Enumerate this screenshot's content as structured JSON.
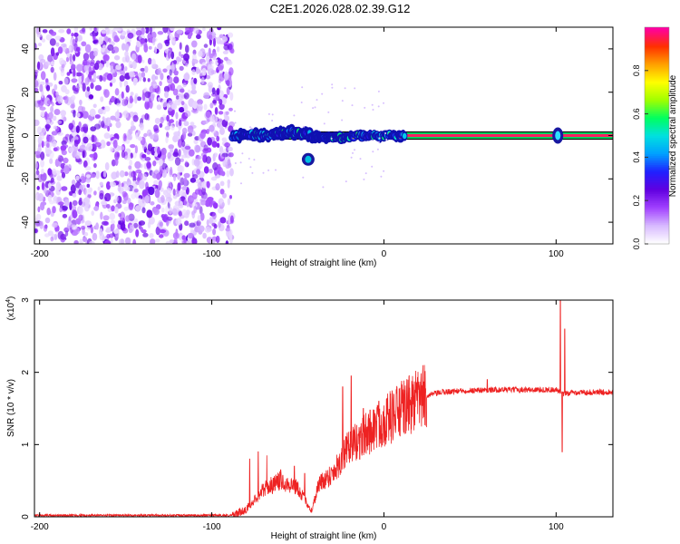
{
  "chart_data": [
    {
      "type": "heatmap",
      "title": "C2E1.2026.028.02.39.G12",
      "xlabel": "Height of straight line (km)",
      "ylabel": "Frequency (Hz)",
      "xlim": [
        -203,
        133
      ],
      "ylim": [
        -50,
        50
      ],
      "x_ticks": [
        -200,
        -100,
        0,
        100
      ],
      "y_ticks": [
        -40,
        -20,
        0,
        20,
        40
      ],
      "colorbar": {
        "label": "Normalized spectral amplitude",
        "range": [
          0,
          1
        ],
        "ticks": [
          0.0,
          0.2,
          0.4,
          0.6,
          0.8
        ],
        "colors": [
          "#ffffff",
          "#d7b8ff",
          "#a040ff",
          "#6000e0",
          "#2020ff",
          "#00a0ff",
          "#00e0e0",
          "#00ff60",
          "#a0ff00",
          "#ffff00",
          "#ffa000",
          "#ff3000",
          "#ff00a0"
        ]
      },
      "features": {
        "noise_region_x": [
          -203,
          -88
        ],
        "carrier_line_frequency": 0,
        "carrier_start_x": -88,
        "spur": {
          "x": -44,
          "y": -11
        },
        "bright_blob_x": 101
      },
      "ridge_points": [
        {
          "x": -85,
          "y": 0
        },
        {
          "x": -75,
          "y": 0.5
        },
        {
          "x": -65,
          "y": 0.3
        },
        {
          "x": -55,
          "y": 1.5
        },
        {
          "x": -45,
          "y": 1
        },
        {
          "x": -38,
          "y": -1.5
        },
        {
          "x": -30,
          "y": -1
        },
        {
          "x": -20,
          "y": -0.5
        },
        {
          "x": -10,
          "y": 0
        },
        {
          "x": 0,
          "y": 0
        },
        {
          "x": 10,
          "y": 0
        },
        {
          "x": 100,
          "y": 0
        }
      ]
    },
    {
      "type": "line",
      "xlabel": "Height of straight line (km)",
      "ylabel": "SNR (10 * v/v)",
      "scale_label": "(x10",
      "scale_exp": "4",
      "scale_close": ")",
      "xlim": [
        -203,
        133
      ],
      "ylim": [
        0,
        3
      ],
      "x_ticks": [
        -200,
        -100,
        0,
        100
      ],
      "y_ticks": [
        0,
        1,
        2,
        3
      ],
      "series": [
        {
          "name": "SNR",
          "color": "#ee2222",
          "envelope": [
            [
              -203,
              0.02
            ],
            [
              -88,
              0.02
            ],
            [
              -80,
              0.1
            ],
            [
              -70,
              0.38
            ],
            [
              -60,
              0.5
            ],
            [
              -50,
              0.4
            ],
            [
              -42,
              0.08
            ],
            [
              -38,
              0.45
            ],
            [
              -30,
              0.6
            ],
            [
              -22,
              0.9
            ],
            [
              -15,
              1.05
            ],
            [
              -5,
              1.25
            ],
            [
              5,
              1.4
            ],
            [
              15,
              1.55
            ],
            [
              25,
              1.68
            ],
            [
              35,
              1.73
            ],
            [
              50,
              1.75
            ],
            [
              70,
              1.76
            ],
            [
              90,
              1.76
            ],
            [
              100,
              1.76
            ],
            [
              104,
              1.7
            ],
            [
              110,
              1.72
            ],
            [
              133,
              1.73
            ]
          ],
          "spikes": [
            [
              -78,
              0.8
            ],
            [
              -73,
              0.9
            ],
            [
              -68,
              0.85
            ],
            [
              -60,
              0.65
            ],
            [
              -52,
              0.7
            ],
            [
              -46,
              0.6
            ],
            [
              -24,
              1.8
            ],
            [
              -19,
              1.95
            ],
            [
              -12,
              1.5
            ],
            [
              -3,
              1.6
            ],
            [
              5,
              1.7
            ],
            [
              60,
              1.9
            ],
            [
              102.5,
              3.0
            ],
            [
              105,
              2.6
            ],
            [
              103.5,
              0.9
            ]
          ]
        }
      ]
    }
  ]
}
